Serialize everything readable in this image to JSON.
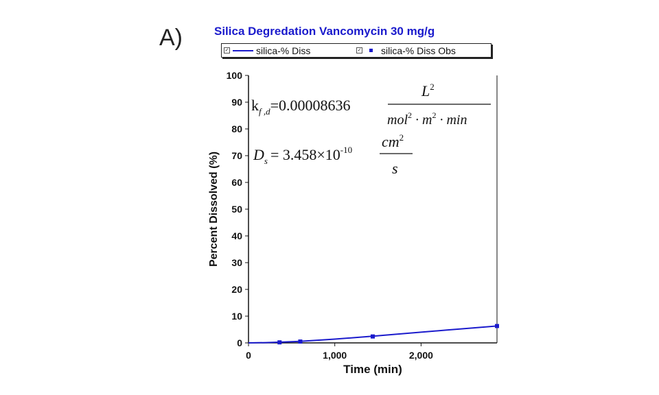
{
  "panel_label": "A)",
  "equations": {
    "eq1_lhs": "k",
    "eq1_lhs_sub": "f ,d",
    "eq1_rhs": "=0.00008636",
    "eq1_num": "L",
    "eq1_num_sup": "2",
    "eq1_den_a": "mol",
    "eq1_den_sup1": "2",
    "eq1_den_b": " · m",
    "eq1_den_sup2": "2",
    "eq1_den_c": " · min",
    "eq2_lhs": "D",
    "eq2_lhs_sub": "s",
    "eq2_rhs": "= 3.458×10",
    "eq2_exp": "-10",
    "eq2_num": "cm",
    "eq2_num_sup": "2",
    "eq2_den": "s"
  },
  "colors": {
    "series": "#1a1acc",
    "title": "#1a1acc"
  },
  "chart_data": {
    "type": "line",
    "title": "Silica Degredation Vancomycin 30 mg/g",
    "xlabel": "Time (min)",
    "ylabel": "Percent Dissolved (%)",
    "xlim": [
      0,
      2880
    ],
    "ylim": [
      0,
      100
    ],
    "xticks": [
      0,
      1000,
      2000
    ],
    "xtick_labels": [
      "0",
      "1,000",
      "2,000"
    ],
    "yticks": [
      0,
      10,
      20,
      30,
      40,
      50,
      60,
      70,
      80,
      90,
      100
    ],
    "ytick_labels": [
      "0",
      "10",
      "20",
      "30",
      "40",
      "50",
      "60",
      "70",
      "80",
      "90",
      "100"
    ],
    "legend_position": "top",
    "grid": false,
    "series": [
      {
        "name": "silica-% Diss",
        "style": "line",
        "x": [
          0,
          200,
          400,
          600,
          800,
          1000,
          1200,
          1440,
          1700,
          2000,
          2300,
          2600,
          2880
        ],
        "y": [
          0,
          0.1,
          0.3,
          0.6,
          1.0,
          1.4,
          1.9,
          2.5,
          3.2,
          4.0,
          4.8,
          5.6,
          6.3
        ]
      },
      {
        "name": "silica-% Diss Obs",
        "style": "markers",
        "x": [
          360,
          600,
          1440,
          2880
        ],
        "y": [
          0.2,
          0.5,
          2.4,
          6.3
        ]
      }
    ]
  }
}
